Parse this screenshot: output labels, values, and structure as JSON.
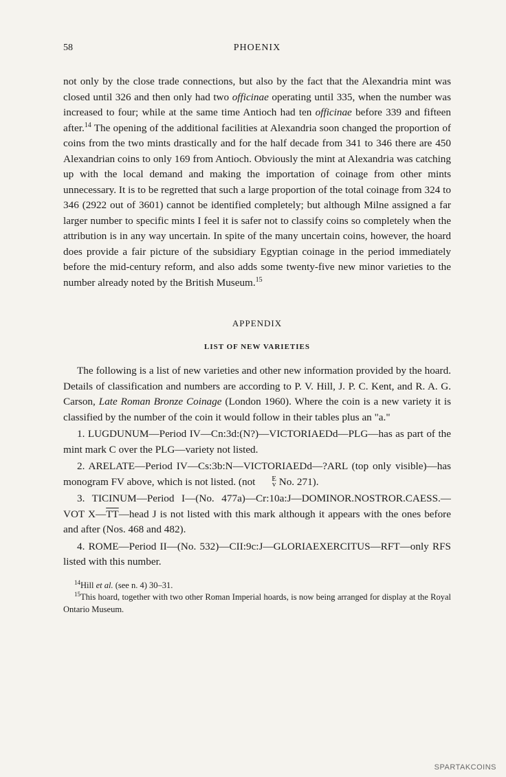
{
  "page_number": "58",
  "running_head": "PHOENIX",
  "body_paragraph": "not only by the close trade connections, but also by the fact that the Alexandria mint was closed until 326 and then only had two |i|officinae|/i| operating until 335, when the number was increased to four; while at the same time Antioch had ten |i|officinae|/i| before 339 and fifteen after.|sup|14|/sup| The opening of the additional facilities at Alexandria soon changed the proportion of coins from the two mints drastically and for the half decade from 341 to 346 there are 450 Alexandrian coins to only 169 from Antioch. Obviously the mint at Alexandria was catching up with the local demand and making the importation of coinage from other mints unnecessary. It is to be regretted that such a large proportion of the total coinage from 324 to 346 (2922 out of 3601) cannot be identified completely; but although Milne assigned a far larger number to specific mints I feel it is safer not to classify coins so completely when the attribution is in any way uncertain. In spite of the many uncertain coins, however, the hoard does provide a fair picture of the subsidiary Egyptian coinage in the period immediately before the mid-century reform, and also adds some twenty-five new minor varieties to the number already noted by the British Museum.|sup|15|/sup|",
  "appendix_head": "APPENDIX",
  "list_head": "LIST OF NEW VARIETIES",
  "appendix_intro": "The following is a list of new varieties and other new information provided by the hoard. Details of classification and numbers are according to P. V. Hill, J. P. C. Kent, and R. A. G. Carson, |i|Late Roman Bronze Coinage|/i| (London 1960). Where the coin is a new variety it is classified by the number of the coin it would follow in their tables plus an \"a.\"",
  "entries": [
    "1. LUGDUNUM—Period IV—Cn:3d:(N?)—VICTORIAEDd—PLG—has as part of the mint mark C over the PLG—variety not listed.",
    "2. ARELATE—Period IV—Cs:3b:N—VICTORIAEDd—?ARL (top only visible)—has monogram FV above, which is not listed. (not |stack|E|v|/stack| No. 271).",
    "3. TICINUM—Period I—(No. 477a)—Cr:10a:J—DOMINOR.NOSTROR.CAESS.—VOT X—|ol|TT|/ol|—head J is not listed with this mark although it appears with the ones before and after (Nos. 468 and 482).",
    "4. ROME—Period II—(No. 532)—CII:9c:J—GLORIAEXERCITUS—RFT—only RFS listed with this number."
  ],
  "footnotes": [
    {
      "num": "14",
      "text": "Hill |i|et al.|/i| (see n. 4) 30–31."
    },
    {
      "num": "15",
      "text": "This hoard, together with two other Roman Imperial hoards, is now being arranged for display at the Royal Ontario Museum."
    }
  ],
  "watermark": "SPARTAKCOINS",
  "colors": {
    "background": "#f5f3ee",
    "text": "#1a1a1a",
    "watermark": "#666666"
  },
  "typography": {
    "body_fontsize": 15.2,
    "body_lineheight": 1.48,
    "footnote_fontsize": 12.5,
    "head_fontsize": 14,
    "font_family": "Georgia, Times New Roman, serif"
  }
}
